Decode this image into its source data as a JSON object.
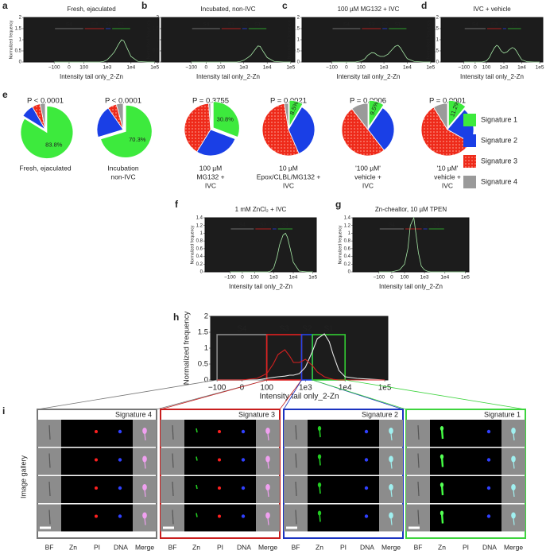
{
  "panel_letters": [
    "a",
    "b",
    "c",
    "d",
    "e",
    "f",
    "g",
    "h",
    "i"
  ],
  "histograms": [
    {
      "title": "Fresh, ejaculated",
      "ylabel": "Normalized frequency",
      "xlabel": "Intensity tail only_2-Zn",
      "xlim": [
        -2000,
        150000
      ],
      "ylim": [
        0,
        2
      ],
      "yticks": [
        0,
        0.5,
        1,
        1.5,
        2
      ],
      "xticks": [
        {
          "value": -100,
          "label": "−100"
        },
        0,
        100,
        {
          "value": 1000,
          "label": "1e3"
        },
        {
          "value": 10000,
          "label": "1e4"
        },
        {
          "value": 100000,
          "label": "1e5"
        }
      ],
      "gate_style": "line",
      "gates": [
        {
          "name": "S4",
          "range": [
            -100,
            100
          ],
          "color": "#8a8a8a"
        },
        {
          "name": "S3",
          "range": [
            100,
            800
          ],
          "color": "#e02020"
        },
        {
          "name": "S2",
          "range": [
            800,
            1500
          ],
          "color": "#2545e8"
        },
        {
          "name": "S1",
          "range": [
            1500,
            10000
          ],
          "color": "#33cc33"
        }
      ],
      "x": [
        -100,
        -50,
        0,
        50,
        100,
        150,
        200,
        300,
        400,
        500,
        700,
        1000,
        1500,
        2000,
        3000,
        4000,
        5000,
        7000,
        10000,
        20000,
        50000,
        100000
      ],
      "series": [
        {
          "color": "#a6e8a6",
          "values": [
            0,
            0,
            0,
            0,
            0,
            0,
            0,
            0,
            0,
            0,
            0.02,
            0.1,
            0.3,
            0.45,
            0.8,
            1.0,
            0.95,
            0.6,
            0.25,
            0.02,
            0,
            0
          ]
        }
      ]
    },
    {
      "title": "Incubated, non-IVC",
      "ylabel": "Normalized frequency",
      "xlabel": "Intensity tail only_2-Zn",
      "xlim": [
        -2000,
        150000
      ],
      "ylim": [
        0,
        2
      ],
      "yticks": [
        0,
        0.5,
        1,
        1.5,
        2
      ],
      "xticks": [
        {
          "value": -100,
          "label": "−100"
        },
        0,
        100,
        {
          "value": 1000,
          "label": "1e3"
        },
        {
          "value": 10000,
          "label": "1e4"
        },
        {
          "value": 100000,
          "label": "1e5"
        }
      ],
      "gate_style": "line",
      "gates": [
        {
          "name": "S4",
          "range": [
            -100,
            100
          ],
          "color": "#8a8a8a"
        },
        {
          "name": "S3",
          "range": [
            100,
            800
          ],
          "color": "#e02020"
        },
        {
          "name": "S2",
          "range": [
            800,
            1500
          ],
          "color": "#2545e8"
        },
        {
          "name": "S1",
          "range": [
            1500,
            10000
          ],
          "color": "#33cc33"
        }
      ],
      "x": [
        -100,
        -50,
        0,
        50,
        100,
        150,
        200,
        300,
        400,
        500,
        700,
        1000,
        1500,
        2000,
        3000,
        4000,
        5000,
        7000,
        10000,
        20000,
        50000,
        100000
      ],
      "series": [
        {
          "color": "#a6e8a6",
          "values": [
            0,
            0,
            0,
            0,
            0,
            0,
            0,
            0,
            0,
            0,
            0.02,
            0.08,
            0.2,
            0.3,
            0.55,
            0.72,
            0.7,
            0.45,
            0.2,
            0.02,
            0,
            0
          ]
        }
      ]
    },
    {
      "title": "100 µM MG132 + IVC",
      "ylabel": "Normalized frequency",
      "xlabel": "Intensity tail only_2-Zn",
      "xlim": [
        -2000,
        150000
      ],
      "ylim": [
        0,
        2
      ],
      "yticks": [
        0,
        0.5,
        1,
        1.5,
        2
      ],
      "xticks": [
        {
          "value": -100,
          "label": "−100"
        },
        0,
        100,
        {
          "value": 1000,
          "label": "1e3"
        },
        {
          "value": 10000,
          "label": "1e4"
        },
        {
          "value": 100000,
          "label": "1e5"
        }
      ],
      "gate_style": "line",
      "gates": [
        {
          "name": "S4",
          "range": [
            -100,
            100
          ],
          "color": "#8a8a8a"
        },
        {
          "name": "S3",
          "range": [
            100,
            800
          ],
          "color": "#e02020"
        },
        {
          "name": "S2",
          "range": [
            800,
            1500
          ],
          "color": "#2545e8"
        },
        {
          "name": "S1",
          "range": [
            1500,
            10000
          ],
          "color": "#33cc33"
        }
      ],
      "x": [
        -100,
        -50,
        0,
        50,
        100,
        150,
        200,
        300,
        400,
        500,
        700,
        1000,
        1500,
        2000,
        3000,
        4000,
        5000,
        7000,
        10000,
        20000,
        50000,
        100000
      ],
      "series": [
        {
          "color": "#a6e8a6",
          "values": [
            0,
            0,
            0,
            0,
            0.05,
            0.15,
            0.3,
            0.42,
            0.4,
            0.32,
            0.25,
            0.25,
            0.35,
            0.5,
            0.7,
            0.75,
            0.65,
            0.4,
            0.15,
            0.02,
            0,
            0
          ]
        }
      ]
    },
    {
      "title": "IVC + vehicle",
      "ylabel": "Normalized frequency",
      "xlabel": "Intensity tail only_2-Zn",
      "xlim": [
        -2000,
        150000
      ],
      "ylim": [
        0,
        2
      ],
      "yticks": [
        0,
        0.5,
        1,
        1.5,
        2
      ],
      "xticks": [
        {
          "value": -100,
          "label": "−100"
        },
        0,
        100,
        {
          "value": 1000,
          "label": "1e3"
        },
        {
          "value": 10000,
          "label": "1e4"
        },
        {
          "value": 100000,
          "label": "1e5"
        }
      ],
      "gate_style": "line",
      "gates": [
        {
          "name": "S4",
          "range": [
            -100,
            100
          ],
          "color": "#8a8a8a"
        },
        {
          "name": "S3",
          "range": [
            100,
            800
          ],
          "color": "#e02020"
        },
        {
          "name": "S2",
          "range": [
            800,
            1500
          ],
          "color": "#2545e8"
        },
        {
          "name": "S1",
          "range": [
            1500,
            10000
          ],
          "color": "#33cc33"
        }
      ],
      "x": [
        -100,
        -50,
        0,
        50,
        100,
        150,
        200,
        300,
        400,
        500,
        700,
        1000,
        1500,
        2000,
        3000,
        4000,
        5000,
        7000,
        10000,
        20000,
        50000,
        100000
      ],
      "series": [
        {
          "color": "#a6e8a6",
          "values": [
            0,
            0,
            0,
            0,
            0.05,
            0.2,
            0.4,
            0.65,
            0.75,
            0.7,
            0.5,
            0.4,
            0.45,
            0.55,
            0.65,
            0.6,
            0.5,
            0.3,
            0.1,
            0.01,
            0,
            0
          ]
        }
      ]
    },
    {
      "title": "1 mM ZnCl₂ + IVC",
      "ylabel": "Normalized frequency",
      "xlabel": "Intensity tail only_2-Zn",
      "xlim": [
        -2000,
        150000
      ],
      "ylim": [
        0,
        1.4
      ],
      "yticks": [
        0,
        0.2,
        0.4,
        0.6,
        0.8,
        1,
        1.2,
        1.4
      ],
      "xticks": [
        {
          "value": -100,
          "label": "−100"
        },
        0,
        100,
        {
          "value": 1000,
          "label": "1e3"
        },
        {
          "value": 10000,
          "label": "1e4"
        },
        {
          "value": 100000,
          "label": "1e5"
        }
      ],
      "gate_style": "line",
      "gates": [
        {
          "name": "S4",
          "range": [
            -100,
            100
          ],
          "color": "#8a8a8a"
        },
        {
          "name": "S3",
          "range": [
            100,
            800
          ],
          "color": "#e02020"
        },
        {
          "name": "S2",
          "range": [
            800,
            1500
          ],
          "color": "#2545e8"
        },
        {
          "name": "S1",
          "range": [
            1500,
            10000
          ],
          "color": "#33cc33"
        }
      ],
      "x": [
        -100,
        -50,
        0,
        50,
        100,
        150,
        200,
        300,
        400,
        500,
        700,
        1000,
        1500,
        2000,
        3000,
        4000,
        5000,
        7000,
        10000,
        20000,
        50000,
        100000
      ],
      "series": [
        {
          "color": "#a6e8a6",
          "values": [
            0,
            0,
            0,
            0,
            0,
            0,
            0,
            0,
            0,
            0,
            0.02,
            0.1,
            0.4,
            0.7,
            0.95,
            1.0,
            0.9,
            0.6,
            0.25,
            0.02,
            0,
            0
          ]
        }
      ]
    },
    {
      "title": "Zn-chealtor, 10 µM TPEN",
      "ylabel": "Normalized frequency",
      "xlabel": "Intensity tail only_2-Zn",
      "xlim": [
        -2000,
        150000
      ],
      "ylim": [
        0,
        1.4
      ],
      "yticks": [
        0,
        0.2,
        0.4,
        0.6,
        0.8,
        1,
        1.2,
        1.4
      ],
      "xticks": [
        {
          "value": -100,
          "label": "−100"
        },
        0,
        100,
        {
          "value": 1000,
          "label": "1e3"
        },
        {
          "value": 10000,
          "label": "1e4"
        },
        {
          "value": 100000,
          "label": "1e5"
        }
      ],
      "gate_style": "line",
      "gates": [
        {
          "name": "S4",
          "range": [
            -100,
            100
          ],
          "color": "#8a8a8a"
        },
        {
          "name": "S3",
          "range": [
            100,
            800
          ],
          "color": "#e02020"
        },
        {
          "name": "S2",
          "range": [
            800,
            1500
          ],
          "color": "#2545e8"
        },
        {
          "name": "S1",
          "range": [
            1500,
            10000
          ],
          "color": "#33cc33"
        }
      ],
      "x": [
        -100,
        -50,
        0,
        50,
        100,
        150,
        200,
        300,
        400,
        500,
        700,
        1000,
        1500,
        2000,
        3000,
        4000,
        5000,
        7000,
        10000,
        20000,
        50000,
        100000
      ],
      "series": [
        {
          "color": "#a6e8a6",
          "values": [
            0,
            0,
            0,
            0.05,
            0.2,
            0.6,
            1.2,
            1.4,
            0.9,
            0.5,
            0.15,
            0.05,
            0.01,
            0,
            0,
            0,
            0,
            0,
            0,
            0,
            0,
            0
          ]
        }
      ]
    },
    {
      "title": null,
      "ylabel": "Normalized frequency",
      "xlabel": "Intensity tail only_2-Zn",
      "xlim": [
        -150,
        120000
      ],
      "ylim": [
        0,
        2
      ],
      "yticks": [
        0,
        0.5,
        1,
        1.5,
        2
      ],
      "xticks": [
        {
          "value": -100,
          "label": "−100"
        },
        0,
        100,
        {
          "value": 1000,
          "label": "1e3"
        },
        {
          "value": 10000,
          "label": "1e4"
        },
        {
          "value": 100000,
          "label": "1e5"
        }
      ],
      "gate_style": "box",
      "gates": [
        {
          "name": "S4",
          "range": [
            -100,
            100
          ],
          "color": "#8a8a8a"
        },
        {
          "name": "S3",
          "range": [
            100,
            800
          ],
          "color": "#e02020"
        },
        {
          "name": "S2",
          "range": [
            800,
            1500
          ],
          "color": "#2545e8"
        },
        {
          "name": "S1",
          "range": [
            1500,
            10000
          ],
          "color": "#33cc33"
        }
      ],
      "x": [
        -100,
        -50,
        0,
        50,
        100,
        150,
        200,
        300,
        400,
        500,
        700,
        1000,
        1500,
        2000,
        3000,
        4000,
        5000,
        7000,
        10000,
        20000,
        50000,
        100000
      ],
      "series": [
        {
          "color": "#e8e8e8",
          "values": [
            0,
            0,
            0,
            0,
            0.05,
            0.08,
            0.1,
            0.12,
            0.15,
            0.15,
            0.2,
            0.4,
            0.9,
            1.3,
            1.45,
            1.2,
            0.8,
            0.3,
            0.1,
            0.05,
            0.02,
            0
          ]
        },
        {
          "color": "#d42020",
          "values": [
            0,
            0,
            0,
            0.05,
            0.2,
            0.5,
            0.8,
            0.95,
            0.75,
            0.55,
            0.55,
            0.65,
            0.45,
            0.25,
            0.1,
            0.05,
            0.02,
            0,
            0,
            0,
            0,
            0
          ]
        }
      ]
    }
  ],
  "legend": [
    {
      "name": "Signature 1",
      "color": "#3dea3d"
    },
    {
      "name": "Signature 2",
      "color": "#1a3fe6"
    },
    {
      "name": "Signature 3",
      "color": "#ee2a1a",
      "pattern": "dots"
    },
    {
      "name": "Signature 4",
      "color": "#9a9a9a"
    }
  ],
  "pies": [
    {
      "p_value": "P < 0.0001",
      "values": [
        83.8,
        8,
        5,
        3.2
      ],
      "value_labels": [
        "83.8%",
        null,
        null,
        null
      ],
      "caption": [
        "Fresh, ejaculated"
      ]
    },
    {
      "p_value": "P < 0.0001",
      "values": [
        70.3,
        20,
        5.5,
        4.2
      ],
      "value_labels": [
        "70.3%",
        null,
        null,
        null
      ],
      "caption": [
        "Incubation",
        "non-IVC"
      ]
    },
    {
      "p_value": "P = 0.3755",
      "values": [
        30.8,
        28,
        40,
        1.2
      ],
      "value_labels": [
        "30.8%",
        null,
        null,
        null
      ],
      "caption": [
        "100 µM",
        "MG132 +",
        "IVC"
      ]
    },
    {
      "p_value": "P = 0.0021",
      "values": [
        8.5,
        35,
        54,
        2.5
      ],
      "value_labels": [
        "8.5%",
        null,
        null,
        null
      ],
      "caption": [
        "10 µM",
        "Epox/CLBL/MG132 +",
        "IVC"
      ]
    },
    {
      "p_value": "P = 0.0006",
      "values": [
        9.5,
        30,
        50,
        10.5
      ],
      "value_labels": [
        "9.5%",
        null,
        null,
        null
      ],
      "caption": [
        "'100 µM'",
        "vehicle +",
        "IVC"
      ]
    },
    {
      "p_value": "P = 0.0001",
      "values": [
        11.2,
        22,
        58,
        8.8
      ],
      "value_labels": [
        "11.2%",
        null,
        null,
        null
      ],
      "caption": [
        "'10 µM'",
        "vehicle +",
        "IVC"
      ]
    }
  ],
  "gallery": {
    "ylabel": "Image gallery",
    "columns": [
      "BF",
      "Zn",
      "PI",
      "DNA",
      "Merge"
    ],
    "groups": [
      {
        "title": "Signature 4",
        "color": "#777777"
      },
      {
        "title": "Signature 3",
        "color": "#c81e1e"
      },
      {
        "title": "Signature 2",
        "color": "#1b33c0"
      },
      {
        "title": "Signature 1",
        "color": "#3ed43e"
      }
    ]
  }
}
